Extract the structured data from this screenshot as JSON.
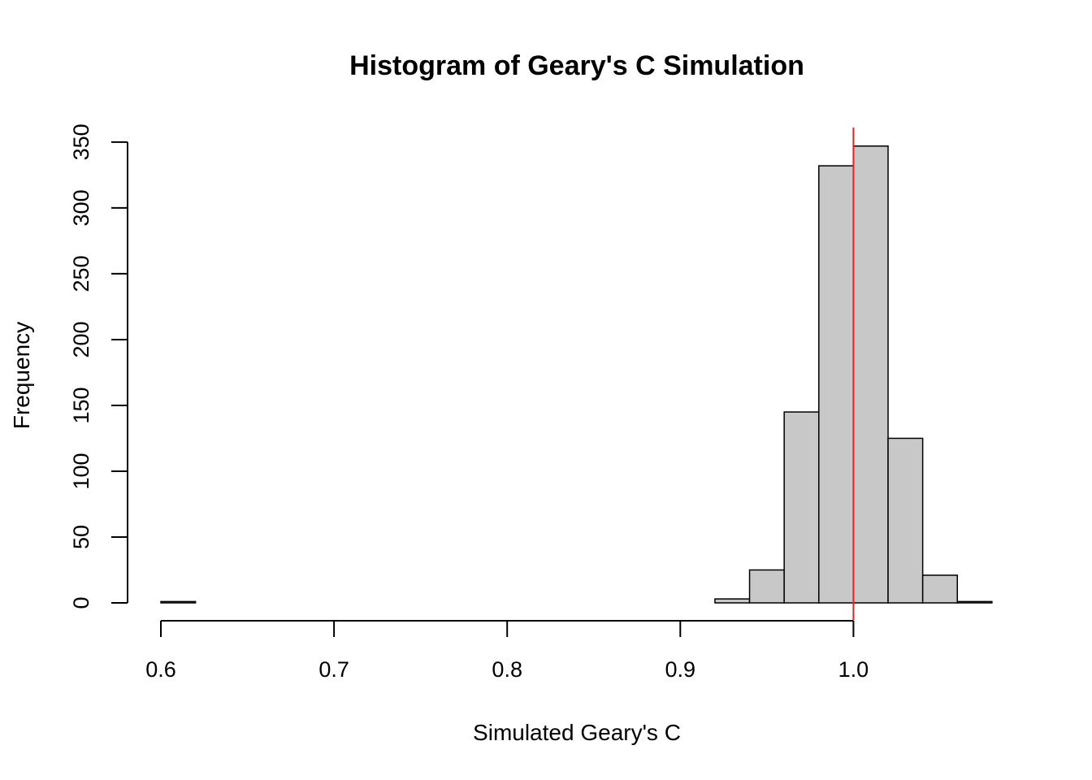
{
  "chart_data": {
    "type": "bar",
    "title": "Histogram of Geary's C Simulation",
    "xlabel": "Simulated Geary's C",
    "ylabel": "Frequency",
    "bin_width": 0.02,
    "bin_start": 0.6,
    "counts": [
      1,
      0,
      0,
      0,
      0,
      0,
      0,
      0,
      0,
      0,
      0,
      0,
      0,
      0,
      0,
      0,
      3,
      25,
      145,
      332,
      347,
      125,
      21,
      1
    ],
    "xlim": [
      0.6,
      1.08
    ],
    "ylim": [
      0,
      350
    ],
    "x_ticks": [
      "0.6",
      "0.7",
      "0.8",
      "0.9",
      "1.0"
    ],
    "y_ticks": [
      "0",
      "50",
      "100",
      "150",
      "200",
      "250",
      "300",
      "350"
    ],
    "reference_line": {
      "x": 1.0,
      "color": "#e8202a"
    },
    "bar_color": "#c8c8c8",
    "grid": false
  }
}
